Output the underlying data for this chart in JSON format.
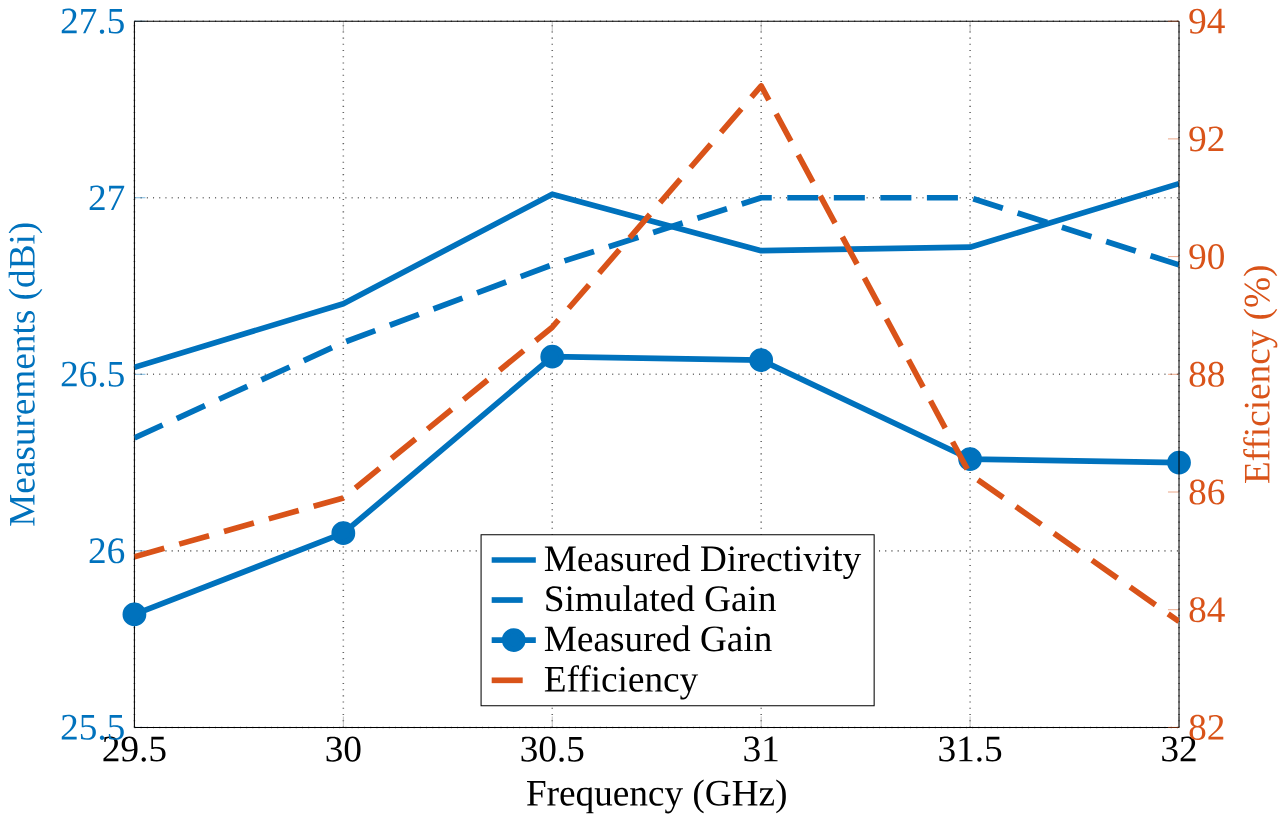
{
  "chart_data": {
    "type": "line",
    "xlabel": "Frequency (GHz)",
    "ylabel": "Measurements (dBi)",
    "y2label": "Efficiency (%)",
    "x": [
      29.5,
      30,
      30.5,
      31,
      31.5,
      32
    ],
    "xlim": [
      29.5,
      32
    ],
    "xticks": [
      29.5,
      30,
      30.5,
      31,
      31.5,
      32
    ],
    "ylim": [
      25.5,
      27.5
    ],
    "yticks": [
      25.5,
      26,
      26.5,
      27,
      27.5
    ],
    "y2lim": [
      82,
      94
    ],
    "y2ticks": [
      82,
      84,
      86,
      88,
      90,
      92,
      94
    ],
    "grid": true,
    "legend": "bottom",
    "series": [
      {
        "name": "Measured Directivity",
        "color": "#0072bd",
        "line_style": "solid",
        "marker": "none",
        "values": [
          26.52,
          26.7,
          27.01,
          26.85,
          26.86,
          27.04
        ]
      },
      {
        "name": "Simulated Gain",
        "color": "#0072bd",
        "line_style": "dashed",
        "marker": "none",
        "values": [
          26.32,
          26.59,
          26.81,
          27.0,
          27.0,
          26.81
        ]
      },
      {
        "name": "Measured Gain",
        "color": "#0072bd",
        "line_style": "solid",
        "marker": "circle",
        "values": [
          25.82,
          26.05,
          26.55,
          26.54,
          26.26,
          26.25
        ]
      },
      {
        "name": "Efficiency",
        "color": "#d95319",
        "line_style": "dashed",
        "marker": "none",
        "axis": "y2",
        "values": [
          84.9,
          85.9,
          88.8,
          92.9,
          86.3,
          83.8
        ]
      }
    ]
  }
}
